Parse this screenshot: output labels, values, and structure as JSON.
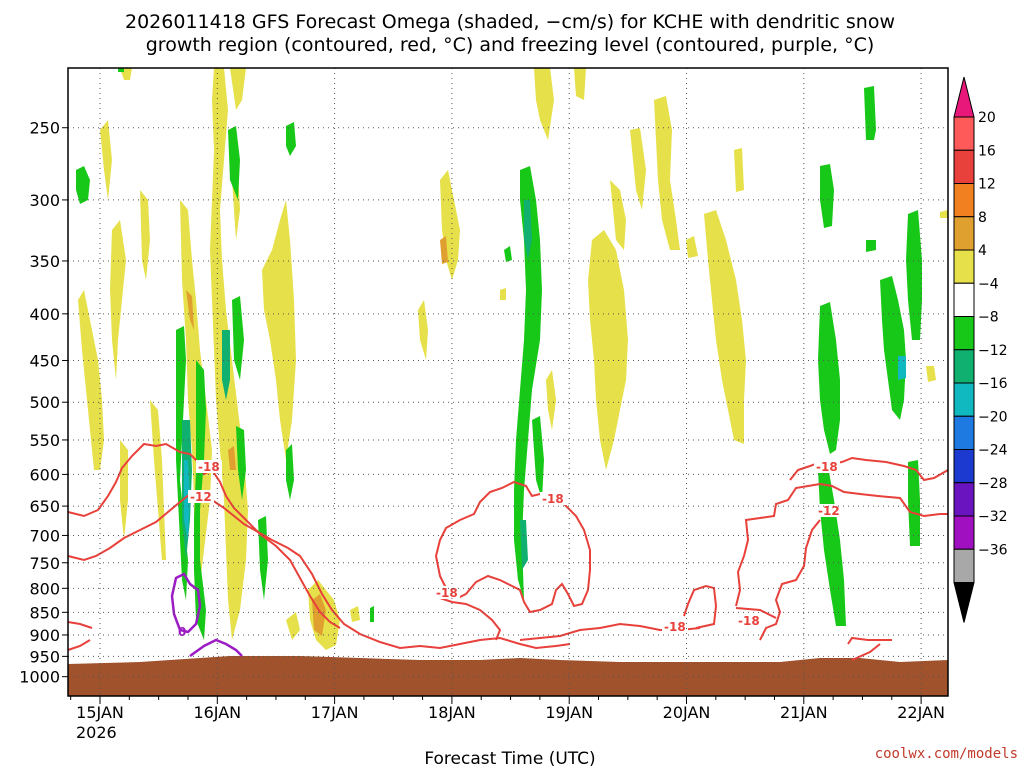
{
  "chart_data": {
    "type": "heatmap",
    "title": "2026011418 GFS Forecast Omega (shaded, −cm/s) for KCHE with dendritic snow",
    "subtitle": "growth region (contoured, red, °C) and freezing level (contoured, purple, °C)",
    "xlabel": "Forecast Time (UTC)",
    "ylabel": "",
    "credit": "coolwx.com/models",
    "x_ticks": [
      "15JAN",
      "16JAN",
      "17JAN",
      "18JAN",
      "19JAN",
      "20JAN",
      "21JAN",
      "22JAN"
    ],
    "x_year": "2026",
    "y_ticks": [
      250,
      300,
      350,
      400,
      450,
      500,
      550,
      600,
      650,
      700,
      750,
      800,
      850,
      900,
      950,
      1000
    ],
    "y_axis": "pressure (hPa), reversed, log",
    "grid": true,
    "colorbar": {
      "levels": [
        "20",
        "16",
        "12",
        "8",
        "4",
        "−4",
        "−8",
        "−12",
        "−16",
        "−20",
        "−24",
        "−28",
        "−32",
        "−36"
      ],
      "colors": [
        "#ff5a5a",
        "#e8403a",
        "#f08020",
        "#e0a030",
        "#e6e04a",
        "#ffffff",
        "#18c818",
        "#10b070",
        "#10b8c0",
        "#1e7ae0",
        "#1c3ad0",
        "#6a14c0",
        "#a010c0",
        "#a8a8a8"
      ],
      "top_arrow": "#e8187a",
      "bottom_arrow": "#000000"
    },
    "contour_labels": [
      {
        "text": "-18",
        "series": "dendritic"
      },
      {
        "text": "-12",
        "series": "dendritic"
      },
      {
        "text": "-18",
        "series": "dendritic"
      },
      {
        "text": "-18",
        "series": "dendritic"
      },
      {
        "text": "-18",
        "series": "dendritic"
      },
      {
        "text": "-18",
        "series": "dendritic"
      },
      {
        "text": "-18",
        "series": "dendritic"
      },
      {
        "text": "-12",
        "series": "dendritic"
      },
      {
        "text": "0",
        "series": "freezing"
      }
    ],
    "colors": {
      "dendritic_contour": "#e8403a",
      "freezing_contour": "#9b1cc4",
      "terrain": "#a0522d",
      "omega_up_weak": "#e6e04a",
      "omega_up_mod": "#e0a030",
      "omega_down_weak": "#18c818",
      "omega_down_mod": "#10b070"
    }
  }
}
